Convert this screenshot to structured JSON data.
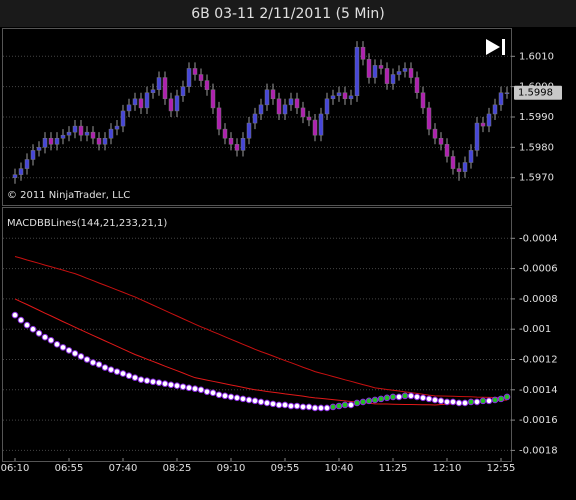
{
  "chart_data": [
    {
      "type": "candlestick",
      "title": "6B 03-11  2/11/2011 (5 Min)",
      "annotation": "© 2011 NinjaTrader, LLC",
      "up_color": "#4646d8",
      "down_color": "#b020b0",
      "wick_color": "#9a9a9a",
      "grid": true,
      "ylim": [
        1.5961,
        1.6019
      ],
      "yticks": [
        {
          "value": 1.601,
          "label": "1.6010"
        },
        {
          "value": 1.6,
          "label": "1.6000"
        },
        {
          "value": 1.599,
          "label": "1.5990"
        },
        {
          "value": 1.598,
          "label": "1.5980"
        },
        {
          "value": 1.597,
          "label": "1.5970"
        }
      ],
      "last_price": 1.5998,
      "categories": [
        "06:10",
        null,
        null,
        null,
        null,
        null,
        null,
        null,
        null,
        "06:55",
        null,
        null,
        null,
        null,
        null,
        null,
        null,
        null,
        "07:40",
        null,
        null,
        null,
        null,
        null,
        null,
        null,
        null,
        "08:25",
        null,
        null,
        null,
        null,
        null,
        null,
        null,
        null,
        "09:10",
        null,
        null,
        null,
        null,
        null,
        null,
        null,
        null,
        "09:55",
        null,
        null,
        null,
        null,
        null,
        null,
        null,
        null,
        "10:40",
        null,
        null,
        null,
        null,
        null,
        null,
        null,
        null,
        "11:25",
        null,
        null,
        null,
        null,
        null,
        null,
        null,
        null,
        "12:10",
        null,
        null,
        null,
        null,
        null,
        null,
        null,
        null,
        "12:55",
        null
      ],
      "open": [
        1.597,
        1.5971,
        1.5973,
        1.5976,
        1.5979,
        1.598,
        1.5983,
        1.5981,
        1.5983,
        1.5984,
        1.5985,
        1.5987,
        1.5984,
        1.5985,
        1.5983,
        1.5981,
        1.5983,
        1.5986,
        1.5987,
        1.5992,
        1.5994,
        1.5996,
        1.5993,
        1.5998,
        1.5999,
        1.6003,
        1.5996,
        1.5992,
        1.5997,
        1.6,
        1.6006,
        1.6004,
        1.6002,
        1.5999,
        1.5993,
        1.5986,
        1.5983,
        1.5981,
        1.5979,
        1.5983,
        1.5988,
        1.5991,
        1.5994,
        1.5999,
        1.5996,
        1.5991,
        1.5994,
        1.5996,
        1.5993,
        1.599,
        1.5989,
        1.5984,
        1.5991,
        1.5996,
        1.5997,
        1.5998,
        1.5996,
        1.5997,
        1.6013,
        1.6009,
        1.6003,
        1.6007,
        1.6006,
        1.6001,
        1.6004,
        1.6005,
        1.6006,
        1.6003,
        1.5998,
        1.5993,
        1.5986,
        1.5983,
        1.5981,
        1.5977,
        1.5973,
        1.5972,
        1.5975,
        1.5979,
        1.5988,
        1.5987,
        1.5991,
        1.5994,
        1.5998
      ],
      "high": [
        1.5973,
        1.5975,
        1.5978,
        1.5981,
        1.5982,
        1.5985,
        1.5985,
        1.5985,
        1.5986,
        1.5987,
        1.5989,
        1.5989,
        1.5987,
        1.5987,
        1.5985,
        1.5985,
        1.5988,
        1.5989,
        1.5994,
        1.5996,
        1.5998,
        1.5998,
        1.6,
        1.6001,
        1.6005,
        1.6005,
        1.5998,
        1.5999,
        1.6002,
        1.6008,
        1.6008,
        1.6006,
        1.6004,
        1.6001,
        1.5995,
        1.5988,
        1.5985,
        1.5983,
        1.5985,
        1.599,
        1.5993,
        1.5996,
        1.6001,
        1.6001,
        1.5998,
        1.5996,
        1.5998,
        1.5998,
        1.5995,
        1.5992,
        1.5991,
        1.5993,
        1.5998,
        1.5999,
        1.6,
        1.6,
        1.5999,
        1.6015,
        1.6015,
        1.6011,
        1.6009,
        1.6009,
        1.6008,
        1.6006,
        1.6007,
        1.6008,
        1.6008,
        1.6005,
        1.6,
        1.5995,
        1.5988,
        1.5985,
        1.5983,
        1.5979,
        1.5975,
        1.5977,
        1.5981,
        1.599,
        1.599,
        1.5993,
        1.5996,
        1.6,
        1.6
      ],
      "low": [
        1.5968,
        1.5969,
        1.5971,
        1.5974,
        1.5977,
        1.5978,
        1.5979,
        1.5979,
        1.5981,
        1.5982,
        1.5983,
        1.5982,
        1.5982,
        1.5981,
        1.5979,
        1.5979,
        1.5981,
        1.5984,
        1.5985,
        1.599,
        1.5992,
        1.5991,
        1.5991,
        1.5996,
        1.5997,
        1.5994,
        1.599,
        1.599,
        1.5995,
        1.5998,
        1.6002,
        1.6,
        1.5997,
        1.5991,
        1.5984,
        1.5981,
        1.5979,
        1.5977,
        1.5977,
        1.5981,
        1.5986,
        1.5989,
        1.5992,
        1.5994,
        1.5989,
        1.5989,
        1.5992,
        1.5991,
        1.5988,
        1.5987,
        1.5982,
        1.5982,
        1.5989,
        1.5994,
        1.5995,
        1.5994,
        1.5994,
        1.5995,
        1.6007,
        1.6001,
        1.6001,
        1.6004,
        1.5999,
        1.5999,
        1.6002,
        1.6003,
        1.6001,
        1.5996,
        1.5991,
        1.5984,
        1.5981,
        1.5979,
        1.5975,
        1.5971,
        1.5969,
        1.597,
        1.5973,
        1.5977,
        1.5985,
        1.5985,
        1.5989,
        1.5992,
        1.5996
      ],
      "close": [
        1.5971,
        1.5973,
        1.5976,
        1.5979,
        1.598,
        1.5983,
        1.5981,
        1.5983,
        1.5984,
        1.5985,
        1.5987,
        1.5984,
        1.5985,
        1.5983,
        1.5981,
        1.5983,
        1.5986,
        1.5987,
        1.5992,
        1.5994,
        1.5996,
        1.5993,
        1.5998,
        1.5999,
        1.6003,
        1.5996,
        1.5992,
        1.5997,
        1.6,
        1.6006,
        1.6004,
        1.6002,
        1.5999,
        1.5993,
        1.5986,
        1.5983,
        1.5981,
        1.5979,
        1.5983,
        1.5988,
        1.5991,
        1.5994,
        1.5999,
        1.5996,
        1.5991,
        1.5994,
        1.5996,
        1.5993,
        1.599,
        1.5989,
        1.5984,
        1.5991,
        1.5996,
        1.5997,
        1.5998,
        1.5996,
        1.5997,
        1.6013,
        1.6009,
        1.6003,
        1.6007,
        1.6006,
        1.6001,
        1.6004,
        1.6005,
        1.6006,
        1.6003,
        1.5998,
        1.5993,
        1.5986,
        1.5983,
        1.5981,
        1.5977,
        1.5973,
        1.5972,
        1.5975,
        1.5979,
        1.5988,
        1.5987,
        1.5991,
        1.5994,
        1.5998,
        1.5998
      ]
    },
    {
      "type": "macd",
      "title": "MACDBBLines(144,21,233,21,1)",
      "grid": true,
      "ylim": [
        -0.00187,
        -0.0002
      ],
      "yticks": [
        -0.0004,
        -0.0006,
        -0.0008,
        -0.001,
        -0.0012,
        -0.0014,
        -0.0016,
        -0.0018
      ],
      "bands": [
        {
          "color": "#c81010",
          "values": [
            -0.00052,
            -0.000531,
            -0.000543,
            -0.000554,
            -0.000565,
            -0.000577,
            -0.000588,
            -0.000599,
            -0.00061,
            -0.000622,
            -0.000633,
            -0.000648,
            -0.000664,
            -0.000679,
            -0.000695,
            -0.00071,
            -0.000725,
            -0.000741,
            -0.000756,
            -0.000772,
            -0.000787,
            -0.000805,
            -0.000823,
            -0.000841,
            -0.000859,
            -0.000877,
            -0.000895,
            -0.000913,
            -0.000931,
            -0.000949,
            -0.000967,
            -0.000984,
            -0.001,
            -0.001017,
            -0.001033,
            -0.00105,
            -0.001067,
            -0.001083,
            -0.0011,
            -0.001116,
            -0.001133,
            -0.001148,
            -0.001162,
            -0.001177,
            -0.001192,
            -0.001207,
            -0.001221,
            -0.001236,
            -0.001251,
            -0.001265,
            -0.00128,
            -0.001291,
            -0.001301,
            -0.001312,
            -0.001323,
            -0.001334,
            -0.001344,
            -0.001355,
            -0.001366,
            -0.001376,
            -0.001387,
            -0.001392,
            -0.001398,
            -0.001403,
            -0.001408,
            -0.001414,
            -0.001419,
            -0.001424,
            -0.001429,
            -0.001435,
            -0.00144,
            -0.001441,
            -0.001442,
            -0.001443,
            -0.001444,
            -0.001445,
            -0.001446,
            -0.001448,
            -0.001449,
            -0.00145,
            -0.001451,
            -0.001452,
            -0.001453
          ]
        },
        {
          "color": "#e01818",
          "values": [
            -0.0008,
            -0.000819,
            -0.000837,
            -0.000856,
            -0.000875,
            -0.000894,
            -0.000912,
            -0.000931,
            -0.00095,
            -0.000968,
            -0.000987,
            -0.001005,
            -0.001023,
            -0.001041,
            -0.001059,
            -0.001077,
            -0.001095,
            -0.001113,
            -0.001131,
            -0.001149,
            -0.001167,
            -0.001182,
            -0.001198,
            -0.001213,
            -0.001228,
            -0.001244,
            -0.001259,
            -0.001274,
            -0.001289,
            -0.001305,
            -0.00132,
            -0.001328,
            -0.001336,
            -0.001344,
            -0.001352,
            -0.00136,
            -0.001368,
            -0.001376,
            -0.001384,
            -0.001392,
            -0.0014,
            -0.001405,
            -0.001411,
            -0.001416,
            -0.001421,
            -0.001427,
            -0.001432,
            -0.001437,
            -0.001442,
            -0.001448,
            -0.001453,
            -0.001457,
            -0.001461,
            -0.001465,
            -0.001469,
            -0.001473,
            -0.001477,
            -0.001481,
            -0.001485,
            -0.001489,
            -0.001493,
            -0.001494,
            -0.001494,
            -0.001495,
            -0.001496,
            -0.001497,
            -0.001497,
            -0.001498,
            -0.001499,
            -0.001499,
            -0.0015,
            -0.001497,
            -0.001495,
            -0.001492,
            -0.001489,
            -0.001486,
            -0.001484,
            -0.001481,
            -0.001478,
            -0.001475,
            -0.001473,
            -0.00147,
            -0.001467
          ]
        }
      ],
      "macd": {
        "rising_color": "#20c020",
        "falling_color": "#ffffff",
        "edge_color": "#8a2be2",
        "values": [
          -0.000907,
          -0.00094,
          -0.000973,
          -0.001,
          -0.001027,
          -0.001053,
          -0.001073,
          -0.0011,
          -0.00112,
          -0.00114,
          -0.00116,
          -0.00118,
          -0.0012,
          -0.00122,
          -0.001233,
          -0.001253,
          -0.001267,
          -0.00128,
          -0.001293,
          -0.001307,
          -0.00132,
          -0.001333,
          -0.00134,
          -0.001347,
          -0.001353,
          -0.00136,
          -0.001367,
          -0.001373,
          -0.00138,
          -0.001387,
          -0.001393,
          -0.0014,
          -0.001413,
          -0.00142,
          -0.001433,
          -0.00144,
          -0.001447,
          -0.001453,
          -0.00146,
          -0.001467,
          -0.001473,
          -0.00148,
          -0.001487,
          -0.001493,
          -0.0015,
          -0.0015,
          -0.001507,
          -0.001507,
          -0.001513,
          -0.001513,
          -0.00152,
          -0.00152,
          -0.00152,
          -0.001513,
          -0.001507,
          -0.0015,
          -0.0015,
          -0.001487,
          -0.00148,
          -0.001473,
          -0.001467,
          -0.00146,
          -0.001453,
          -0.001447,
          -0.001447,
          -0.00144,
          -0.00144,
          -0.001447,
          -0.001453,
          -0.00146,
          -0.001467,
          -0.001473,
          -0.00148,
          -0.00148,
          -0.001487,
          -0.001487,
          -0.00148,
          -0.00148,
          -0.001473,
          -0.001473,
          -0.001467,
          -0.00146,
          -0.001447
        ]
      }
    }
  ]
}
